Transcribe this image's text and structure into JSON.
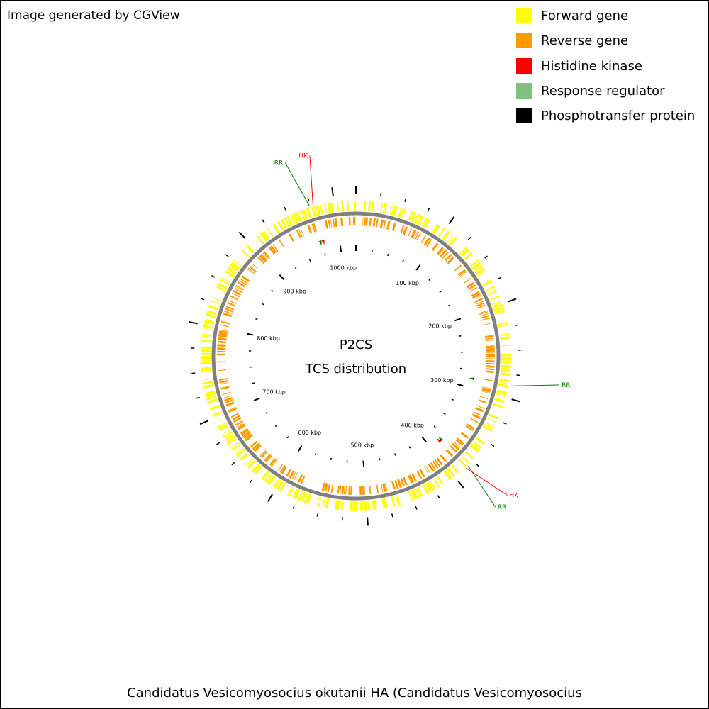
{
  "credit": "Image generated by CGView",
  "title_line1": "P2CS",
  "title_line2": "TCS distribution",
  "footer": "Candidatus Vesicomyosocius okutanii HA (Candidatus Vesicomyosocius",
  "legend": [
    {
      "label": "Forward gene",
      "color": "#ffff00"
    },
    {
      "label": "Reverse gene",
      "color": "#ff9900"
    },
    {
      "label": "Histidine kinase",
      "color": "#ff0000"
    },
    {
      "label": "Response regulator",
      "color": "#80c080"
    },
    {
      "label": "Phosphotransfer protein",
      "color": "#000000"
    }
  ],
  "colors": {
    "forward": "#ffff00",
    "reverse": "#ff9900",
    "hk": "#ff0000",
    "rr": "#008000",
    "backbone": "#808080",
    "tick": "#000000"
  },
  "genome_length_kbp": 1023,
  "ruler_labels": [
    "100 kbp",
    "200 kbp",
    "300 kbp",
    "400 kbp",
    "500 kbp",
    "600 kbp",
    "700 kbp",
    "800 kbp",
    "900 kbp",
    "1000 kbp"
  ],
  "features": [
    {
      "type": "RR",
      "position_kbp": 974
    },
    {
      "type": "HK",
      "position_kbp": 978
    },
    {
      "type": "RR",
      "position_kbp": 287
    },
    {
      "type": "RR",
      "position_kbp": 382
    },
    {
      "type": "HK",
      "position_kbp": 385
    }
  ]
}
